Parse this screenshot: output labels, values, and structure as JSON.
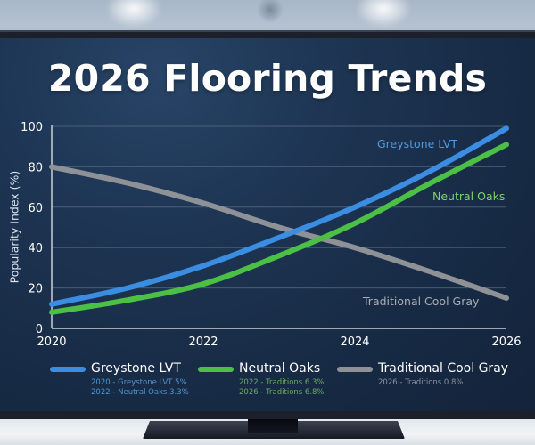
{
  "title": "2026 Flooring Trends",
  "colors": {
    "greystone": "#3a8de0",
    "neutral_oaks": "#4cbf45",
    "cool_gray": "#8e9196",
    "grid": "#5a6c85",
    "axis": "#c9d0da",
    "text": "#ffffff"
  },
  "chart_data": {
    "type": "line",
    "title": "2026 Flooring Trends",
    "xlabel": "",
    "ylabel": "Popularity Index (%)",
    "x": [
      2020,
      2021,
      2022,
      2023,
      2024,
      2025,
      2026
    ],
    "x_ticks": [
      "2020",
      "2022",
      "2024",
      "2026"
    ],
    "y_ticks": [
      "0",
      "20",
      "40",
      "60",
      "80",
      "100"
    ],
    "ylim": [
      0,
      100
    ],
    "xlim": [
      2020,
      2026
    ],
    "grid": true,
    "legend_position": "bottom",
    "series": [
      {
        "name": "Greystone LVT",
        "color": "#3a8de0",
        "values": [
          12,
          20,
          31,
          45,
          60,
          78,
          99
        ],
        "label_inline": "Greystone LVT"
      },
      {
        "name": "Neutral Oaks",
        "color": "#4cbf45",
        "values": [
          8,
          14,
          22,
          36,
          52,
          72,
          91
        ],
        "label_inline": "Neutral Oaks"
      },
      {
        "name": "Traditional Cool Gray",
        "color": "#8e9196",
        "values": [
          80,
          72,
          62,
          50,
          40,
          28,
          15
        ],
        "label_inline": "Traditional Cool Gray"
      }
    ]
  },
  "legend": [
    {
      "label": "Greystone LVT",
      "notes": [
        "2020 - Greystone LVT 5%",
        "2022 - Neutral Oaks 3.3%"
      ]
    },
    {
      "label": "Neutral Oaks",
      "notes": [
        "2022 - Traditions 6.3%",
        "2026 - Traditions 6.8%"
      ]
    },
    {
      "label": "Traditional Cool Gray",
      "notes": [
        "2026 - Traditions 0.8%"
      ]
    }
  ]
}
